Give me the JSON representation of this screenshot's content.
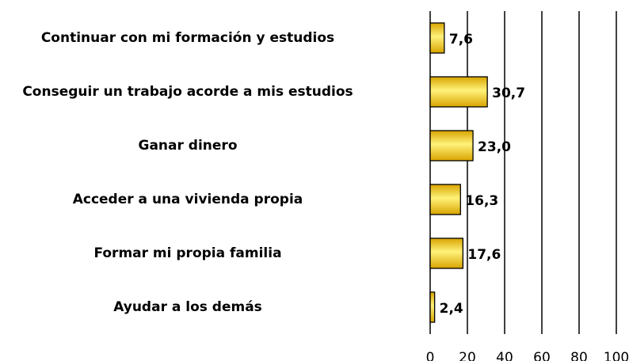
{
  "chart_data": {
    "type": "bar",
    "orientation": "horizontal",
    "categories": [
      "Continuar con mi formación y estudios",
      "Conseguir un trabajo acorde a mis estudios",
      "Ganar dinero",
      "Acceder a una vivienda propia",
      "Formar mi propia familia",
      "Ayudar a los demás"
    ],
    "values": [
      7.6,
      30.7,
      23.0,
      16.3,
      17.6,
      2.4
    ],
    "value_labels": [
      "7,6",
      "30,7",
      "23,0",
      "16,3",
      "17,6",
      "2,4"
    ],
    "color": "#d9a400",
    "xlim": [
      0,
      100
    ],
    "xticks": [
      0,
      20,
      40,
      60,
      80,
      100
    ],
    "grid": true
  }
}
